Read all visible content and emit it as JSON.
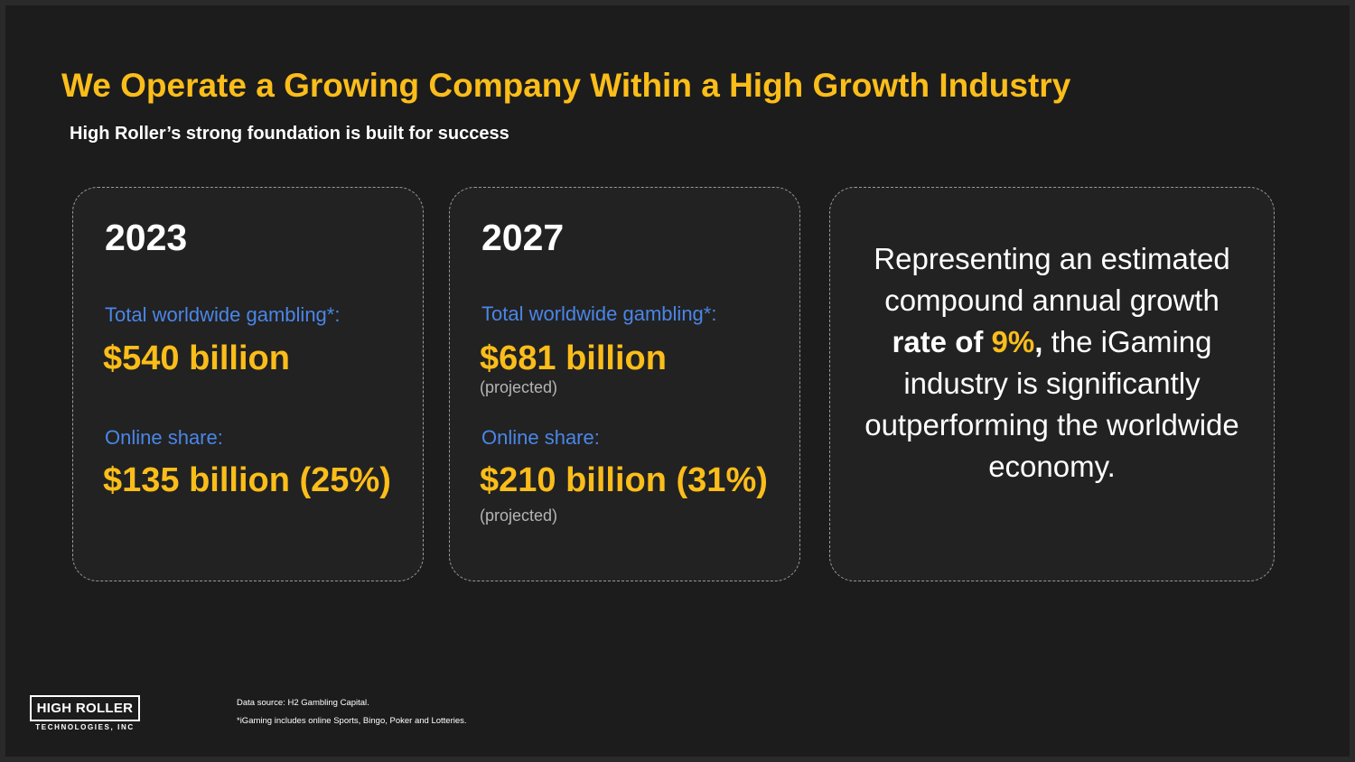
{
  "title": "We Operate a Growing Company Within a High Growth Industry",
  "subtitle": "High Roller’s strong foundation is built for success",
  "cards": [
    {
      "year": "2023",
      "total_label": "Total worldwide gambling*:",
      "total_value": "$540 billion",
      "online_label": "Online share:",
      "online_value": "$135 billion (25%)"
    },
    {
      "year": "2027",
      "total_label": "Total worldwide gambling*:",
      "total_value": "$681 billion",
      "total_note": "(projected)",
      "online_label": "Online share:",
      "online_value": "$210 billion (31%)",
      "online_note": "(projected)"
    }
  ],
  "statement": {
    "part1": "Representing an estimated compound annual growth ",
    "bold": "rate of",
    "highlight": "9%",
    "comma": ",",
    "part2": " the iGaming industry is significantly outperforming the worldwide economy."
  },
  "logo": {
    "main": "HIGH ROLLER",
    "sub": "TECHNOLOGIES, INC"
  },
  "footnotes": {
    "source": "Data source: H2 Gambling Capital.",
    "note": "*iGaming includes online Sports, Bingo, Poker and Lotteries."
  },
  "colors": {
    "accent": "#fbbd1a",
    "label_blue": "#4a86e8",
    "background": "#1c1c1c"
  }
}
